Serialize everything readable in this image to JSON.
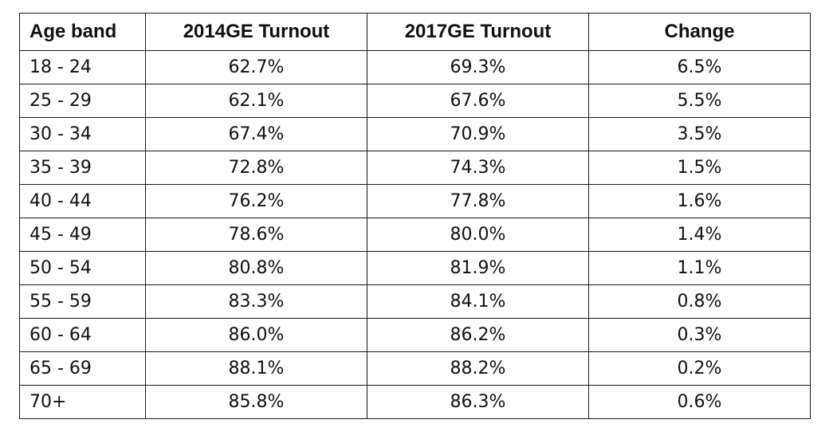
{
  "table": {
    "headers": [
      "Age band",
      "2014GE Turnout",
      "2017GE Turnout",
      "Change"
    ],
    "rows": [
      [
        "18 - 24",
        "62.7%",
        "69.3%",
        "6.5%"
      ],
      [
        "25 - 29",
        "62.1%",
        "67.6%",
        "5.5%"
      ],
      [
        "30 - 34",
        "67.4%",
        "70.9%",
        "3.5%"
      ],
      [
        "35 - 39",
        "72.8%",
        "74.3%",
        "1.5%"
      ],
      [
        "40 - 44",
        "76.2%",
        "77.8%",
        "1.6%"
      ],
      [
        "45 - 49",
        "78.6%",
        "80.0%",
        "1.4%"
      ],
      [
        "50 - 54",
        "80.8%",
        "81.9%",
        "1.1%"
      ],
      [
        "55 - 59",
        "83.3%",
        "84.1%",
        "0.8%"
      ],
      [
        "60 - 64",
        "86.0%",
        "86.2%",
        "0.3%"
      ],
      [
        "65 - 69",
        "88.1%",
        "88.2%",
        "0.2%"
      ],
      [
        "70+",
        "85.8%",
        "86.3%",
        "0.6%"
      ]
    ]
  }
}
